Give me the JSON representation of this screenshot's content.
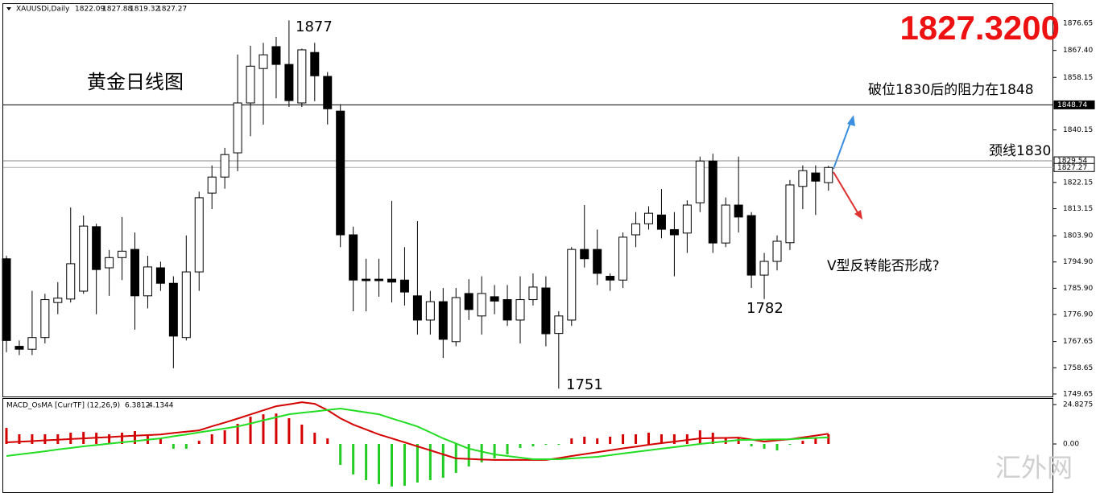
{
  "chart_data": [
    {
      "type": "candlestick",
      "title": "XAUUSDi,Daily",
      "open": [
        1796,
        1766,
        1765,
        1769,
        1781,
        1782.2,
        1784.9,
        1807,
        1792.9,
        1796.4,
        1799.2,
        1783.3,
        1792.9,
        1787.6,
        1769,
        1791.5,
        1818.5,
        1824,
        1832.3,
        1849.4,
        1861.2,
        1868.7,
        1862.6,
        1849.4,
        1866.7,
        1858.5,
        1846.6,
        1804.2,
        1789,
        1789,
        1789,
        1788.7,
        1783.3,
        1775,
        1781.3,
        1767.6,
        1784.1,
        1776.4,
        1783,
        1782,
        1775,
        1782,
        1786,
        1770.4,
        1775,
        1799.2,
        1799.2,
        1790,
        1788.7,
        1804.2,
        1808,
        1811,
        1806,
        1804.8,
        1815.2,
        1829.5,
        1801.4,
        1814.4,
        1810.8,
        1790.4,
        1795.1,
        1801.5,
        1820.8,
        1825.4,
        1822.09
      ],
      "high": [
        1797,
        1768,
        1785,
        1784,
        1788,
        1813.6,
        1810.8,
        1808,
        1799,
        1810.3,
        1805,
        1797,
        1795,
        1790,
        1804,
        1819,
        1828,
        1834,
        1866,
        1869,
        1870,
        1872,
        1877.7,
        1868,
        1870,
        1860,
        1849,
        1807,
        1796,
        1796,
        1815.8,
        1800,
        1808.9,
        1785,
        1786,
        1786,
        1789,
        1790,
        1787,
        1787,
        1790,
        1791,
        1790,
        1778,
        1800,
        1814.4,
        1806,
        1791,
        1805,
        1812,
        1814,
        1819.9,
        1812,
        1816,
        1831,
        1832,
        1817,
        1831,
        1812,
        1798,
        1804,
        1823,
        1828,
        1828,
        1827.88
      ],
      "low": [
        1764,
        1763,
        1763,
        1767,
        1777,
        1781,
        1784,
        1777,
        1783.3,
        1788.7,
        1771.7,
        1779,
        1785,
        1758.5,
        1768,
        1785,
        1813,
        1820,
        1826,
        1838,
        1842,
        1851,
        1848,
        1848,
        1850,
        1842,
        1800,
        1778,
        1778,
        1783,
        1781,
        1780,
        1770,
        1770,
        1762,
        1766,
        1775,
        1770,
        1777,
        1773,
        1767,
        1780,
        1766,
        1751.5,
        1773,
        1793,
        1787,
        1785,
        1786,
        1800,
        1806,
        1803,
        1790,
        1798,
        1812,
        1798,
        1800,
        1805,
        1786,
        1782.2,
        1792,
        1799,
        1813,
        1811,
        1819.32
      ],
      "close": [
        1768,
        1765,
        1769,
        1782,
        1782.5,
        1794.3,
        1807.2,
        1792.3,
        1796.4,
        1798.6,
        1783.3,
        1793.2,
        1787.6,
        1769.5,
        1791.5,
        1816.9,
        1824,
        1831.7,
        1849.4,
        1862,
        1865.9,
        1862.6,
        1850.2,
        1867.6,
        1858.7,
        1847.4,
        1804.2,
        1788.7,
        1788.5,
        1788.5,
        1788,
        1784.6,
        1775,
        1781.3,
        1768.4,
        1782.7,
        1778.6,
        1784.1,
        1781.5,
        1775,
        1782,
        1786.3,
        1770.3,
        1776.4,
        1799.2,
        1796,
        1791,
        1788.7,
        1803.4,
        1808,
        1811.6,
        1806.1,
        1804.2,
        1814.4,
        1829.5,
        1801.4,
        1814.4,
        1810.3,
        1790.4,
        1795.1,
        1802,
        1821.3,
        1826.2,
        1822.6,
        1827.27
      ],
      "up_color": "#ffffff",
      "down_color": "#000000",
      "ylim": [
        1748.8,
        1883.3
      ],
      "yticks": [
        1876.65,
        {
          "value": 1867.4,
          "label": "1867.40"
        },
        1858.15,
        1840.15,
        1822.15,
        1813.15,
        {
          "value": 1803.9,
          "label": "1803.90"
        },
        {
          "value": 1794.9,
          "label": "1794.90"
        },
        {
          "value": 1785.9,
          "label": "1785.90"
        },
        {
          "value": 1776.9,
          "label": "1776.90"
        },
        1767.65,
        1758.65,
        1749.65
      ],
      "hlines": [
        1848.74,
        1829.54
      ],
      "big_price": {
        "value": 1827.32,
        "label": "1827.3200"
      },
      "annotations": [
        "黄金日线图",
        "1877",
        "破位1830后的阻力在1848",
        "颈线1830",
        "V型反转能否形成?",
        "1782",
        "1751"
      ]
    },
    {
      "type": "macd",
      "title": "MACD_OsMA [CurrTF] (12,26,9)",
      "histogram": [
        10.1,
        6.1,
        6.1,
        6.1,
        6.1,
        7.1,
        7.6,
        7.1,
        6.1,
        7.1,
        8.1,
        6.1,
        3.5,
        -3,
        -3,
        2,
        6.1,
        8.6,
        12.7,
        17.2,
        18.7,
        19.2,
        16.2,
        12.2,
        7.1,
        3.5,
        -13.2,
        -19.2,
        -22.8,
        -25.3,
        -26.8,
        -26.3,
        -24.3,
        -22.8,
        -21.3,
        -18.2,
        -14.2,
        -11.6,
        -9.1,
        -6.6,
        -2.5,
        -1.5,
        -0.5,
        -0.5,
        3.5,
        4.6,
        3.5,
        4.6,
        6.1,
        6.1,
        7.1,
        6.1,
        6.1,
        6.1,
        8.6,
        7.1,
        3.5,
        3.5,
        -1.5,
        -3,
        -4.1,
        -0.5,
        2,
        3.5,
        6.1
      ],
      "macd": [
        1,
        1.4,
        1.8,
        2.3,
        2.7,
        3.1,
        3.5,
        3.9,
        4.3,
        4.8,
        5.2,
        5.6,
        6,
        6.9,
        7.7,
        8.6,
        11.1,
        13.5,
        16,
        18.6,
        21.2,
        23.8,
        25,
        26.3,
        25.3,
        21.3,
        16.2,
        12.2,
        9.1,
        6,
        3.5,
        1,
        -1.5,
        -4,
        -6.6,
        -9.1,
        -9.4,
        -9.8,
        -10.1,
        -10.1,
        -10.1,
        -10.1,
        -10.1,
        -8.9,
        -7.6,
        -6.4,
        -5.2,
        -4,
        -2.8,
        -1.7,
        -0.5,
        0.5,
        1.5,
        2.5,
        3.5,
        3.7,
        3.8,
        4,
        2.8,
        1.5,
        2.3,
        3,
        4.1,
        5.3,
        6.3812
      ],
      "signal": [
        -7.6,
        -6.6,
        -5.6,
        -4.6,
        -3.5,
        -2.5,
        -1.5,
        -0.7,
        0.2,
        1,
        1.8,
        2.7,
        3.5,
        4.8,
        6,
        7.3,
        8.5,
        9.8,
        11,
        12.9,
        14.9,
        16.8,
        18.7,
        19.6,
        20.5,
        21.4,
        22.3,
        21.1,
        19.9,
        18.7,
        16.1,
        13.6,
        11,
        7.3,
        3.5,
        0.3,
        -3,
        -4.8,
        -6.6,
        -7.6,
        -8.6,
        -9.6,
        -9.6,
        -9.6,
        -9.1,
        -8.6,
        -8.1,
        -7.1,
        -6,
        -5,
        -4,
        -3,
        -2,
        -1,
        0,
        0.8,
        1.7,
        2.5,
        2.6,
        2.8,
        2.9,
        3,
        3.4,
        3.8,
        4.1344
      ],
      "up_color": "#d40000",
      "down_color": "#22cc22",
      "macd_color": "#d40000",
      "signal_color": "#22dd22",
      "ylim": [
        -30.4,
        28.9
      ],
      "yticks": [
        24.8275,
        {
          "value": 0,
          "label": "0.00"
        }
      ]
    }
  ],
  "watermark": "汇外网"
}
